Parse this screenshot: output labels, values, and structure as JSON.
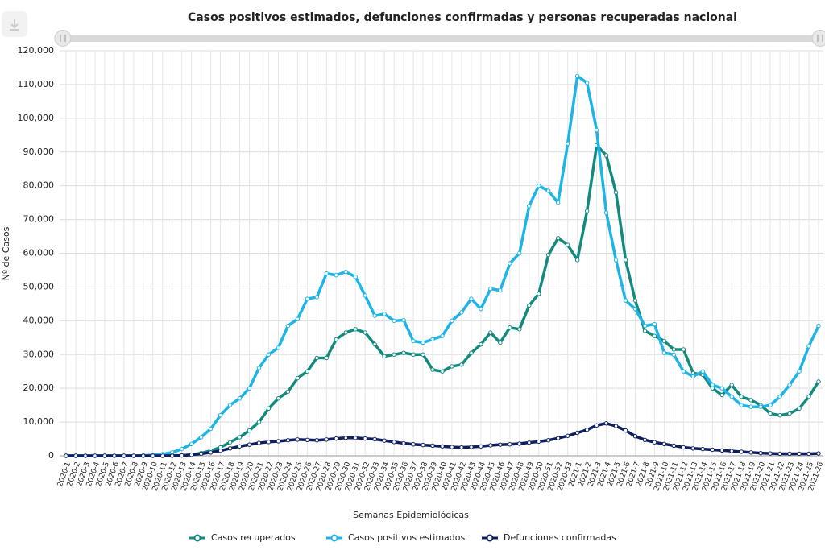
{
  "chart_data": {
    "type": "line",
    "title": "Casos positivos estimados, defunciones confirmadas y personas recuperadas nacional",
    "y_label": "Nº de Casos",
    "x_label": "Semanas Epidemiológicas",
    "categories": [
      "2020-1",
      "2020-2",
      "2020-3",
      "2020-4",
      "2020-5",
      "2020-6",
      "2020-7",
      "2020-8",
      "2020-9",
      "2020-10",
      "2020-11",
      "2020-12",
      "2020-13",
      "2020-14",
      "2020-15",
      "2020-16",
      "2020-17",
      "2020-18",
      "2020-19",
      "2020-20",
      "2020-21",
      "2020-22",
      "2020-23",
      "2020-24",
      "2020-25",
      "2020-26",
      "2020-27",
      "2020-28",
      "2020-29",
      "2020-30",
      "2020-31",
      "2020-32",
      "2020-33",
      "2020-34",
      "2020-35",
      "2020-36",
      "2020-37",
      "2020-38",
      "2020-39",
      "2020-40",
      "2020-41",
      "2020-42",
      "2020-43",
      "2020-44",
      "2020-45",
      "2020-46",
      "2020-47",
      "2020-48",
      "2020-49",
      "2020-50",
      "2020-51",
      "2020-52",
      "2020-53",
      "2021-1",
      "2021-2",
      "2021-3",
      "2021-4",
      "2021-5",
      "2021-6",
      "2021-7",
      "2021-8",
      "2021-9",
      "2021-10",
      "2021-11",
      "2021-12",
      "2021-13",
      "2021-14",
      "2021-15",
      "2021-16",
      "2021-17",
      "2021-18",
      "2021-19",
      "2021-20",
      "2021-21",
      "2021-22",
      "2021-23",
      "2021-24",
      "2021-25",
      "2021-26"
    ],
    "series": [
      {
        "name": "Casos recuperados",
        "color": "#138a7e",
        "values": [
          0,
          0,
          0,
          0,
          0,
          0,
          0,
          0,
          0,
          0,
          0,
          100,
          100,
          300,
          800,
          1500,
          2500,
          4000,
          5500,
          7500,
          10000,
          14000,
          17000,
          19000,
          23000,
          25000,
          29000,
          29000,
          34500,
          36500,
          37500,
          36500,
          33000,
          29500,
          30000,
          30500,
          30000,
          30000,
          25500,
          25000,
          26500,
          27000,
          30500,
          33000,
          36500,
          33500,
          38000,
          37500,
          44500,
          48000,
          59500,
          64500,
          62500,
          58000,
          72500,
          92000,
          89000,
          78000,
          58000,
          46000,
          37000,
          35500,
          34000,
          31500,
          31500,
          24500,
          24000,
          20000,
          18000,
          21000,
          17500,
          16500,
          15000,
          12500,
          12000,
          12500,
          14000,
          17500,
          22000
        ]
      },
      {
        "name": "Casos positivos estimados",
        "color": "#1db4e8",
        "values": [
          0,
          0,
          0,
          0,
          0,
          0,
          0,
          0,
          100,
          200,
          500,
          1000,
          2000,
          3500,
          5500,
          8000,
          12000,
          15000,
          17000,
          20000,
          26000,
          30000,
          32000,
          38500,
          40500,
          46500,
          47000,
          54000,
          53500,
          54500,
          53000,
          47500,
          41500,
          42000,
          40000,
          40200,
          34000,
          33500,
          34500,
          35500,
          40000,
          42500,
          46500,
          43500,
          49500,
          49000,
          57000,
          60000,
          74000,
          80000,
          78500,
          75000,
          92500,
          112500,
          110500,
          96500,
          72000,
          58000,
          46000,
          43500,
          38500,
          39000,
          30500,
          30000,
          25000,
          23500,
          25000,
          21000,
          20000,
          17500,
          15000,
          14500,
          14500,
          15000,
          17500,
          21000,
          25000,
          32500,
          38500
        ]
      },
      {
        "name": "Defunciones confirmadas",
        "color": "#0e1f5f",
        "values": [
          0,
          0,
          0,
          0,
          0,
          0,
          0,
          0,
          0,
          0,
          0,
          0,
          100,
          300,
          600,
          1000,
          1500,
          2200,
          2800,
          3300,
          3800,
          4100,
          4300,
          4600,
          4800,
          4700,
          4600,
          4800,
          5100,
          5300,
          5300,
          5100,
          4900,
          4500,
          4100,
          3700,
          3400,
          3200,
          3000,
          2800,
          2600,
          2500,
          2600,
          2800,
          3100,
          3300,
          3400,
          3600,
          3900,
          4200,
          4600,
          5200,
          5900,
          6800,
          7700,
          9000,
          9600,
          8800,
          7500,
          5800,
          4700,
          4000,
          3500,
          3000,
          2500,
          2200,
          2000,
          1800,
          1600,
          1400,
          1200,
          1000,
          800,
          700,
          600,
          600,
          600,
          600,
          700
        ]
      }
    ],
    "ylim": [
      0,
      120000
    ],
    "yticks": [
      0,
      {
        "value": 10000,
        "label": "10,000"
      },
      {
        "value": 20000,
        "label": "20,000"
      },
      {
        "value": 30000,
        "label": "30,000"
      },
      {
        "value": 40000,
        "label": "40,000"
      },
      {
        "value": 50000,
        "label": "50,000"
      },
      {
        "value": 60000,
        "label": "60,000"
      },
      {
        "value": 70000,
        "label": "70,000"
      },
      {
        "value": 80000,
        "label": "80,000"
      },
      {
        "value": 90000,
        "label": "90,000"
      },
      {
        "value": 100000,
        "label": "100,000"
      },
      {
        "value": 110000,
        "label": "110,000"
      },
      {
        "value": 120000,
        "label": "120,000"
      }
    ],
    "grid": true,
    "legend": "bottom"
  }
}
